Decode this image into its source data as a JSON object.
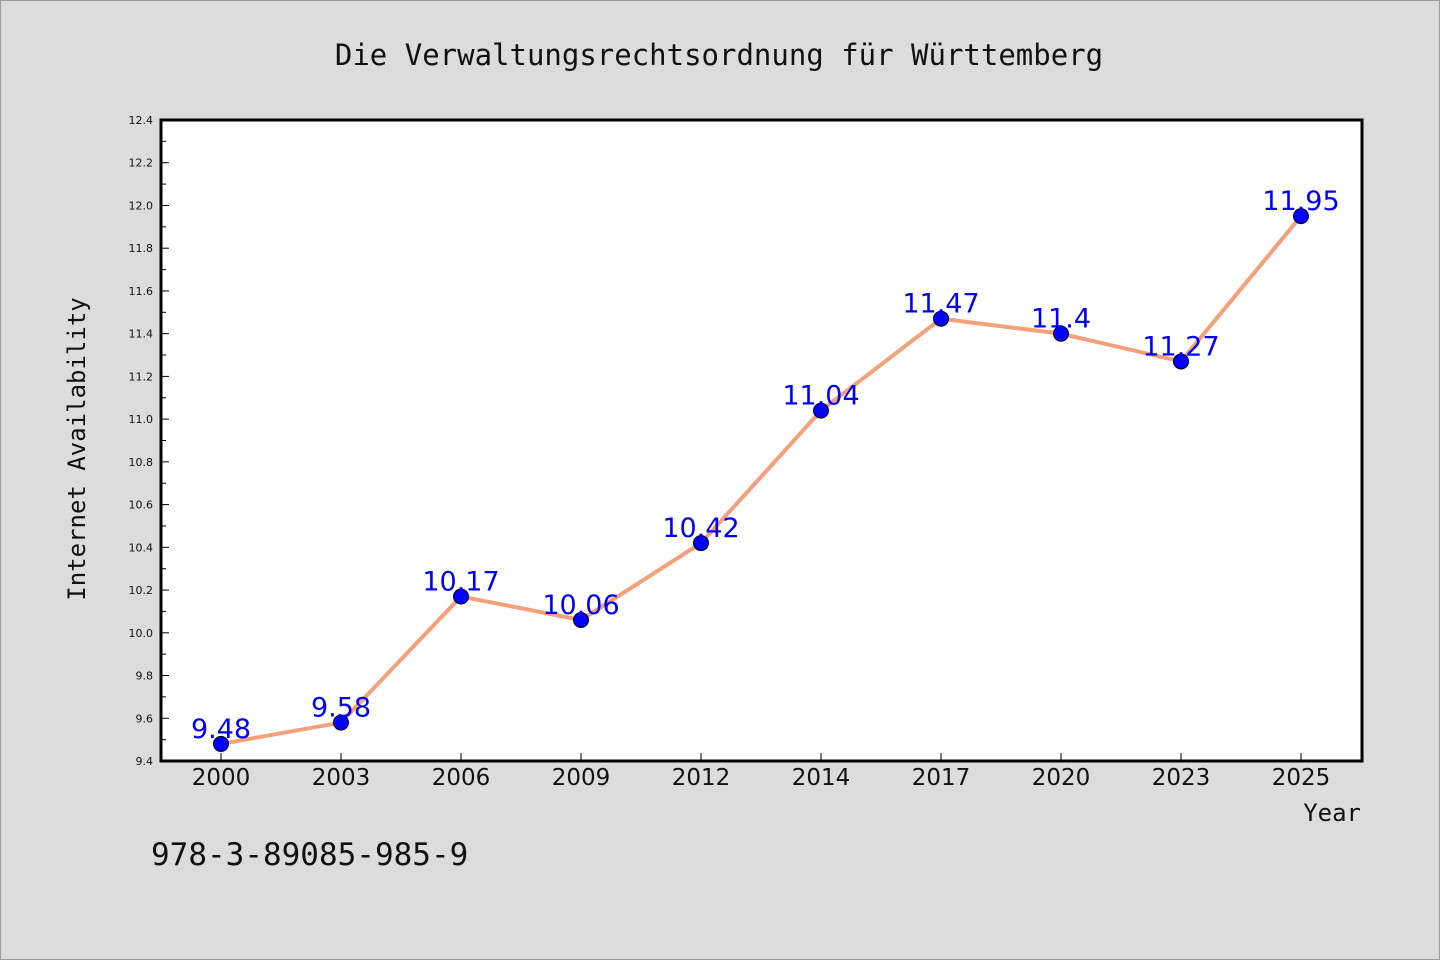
{
  "page": {
    "isbn": "978-3-89085-985-9"
  },
  "colors": {
    "background": "#dcdcdc",
    "plot_background": "#ffffff",
    "line": "#f5a07a",
    "marker": "#0000ff",
    "data_label": "#0000ff",
    "axis": "#000000"
  },
  "chart_data": {
    "type": "line",
    "title": "Die Verwaltungsrechtsordnung für Württemberg",
    "xlabel": "Year",
    "ylabel": "Internet Availability",
    "categories": [
      "2000",
      "2003",
      "2006",
      "2009",
      "2012",
      "2014",
      "2017",
      "2020",
      "2023",
      "2025"
    ],
    "series": [
      {
        "values": [
          9.48,
          9.58,
          10.17,
          10.06,
          10.42,
          11.04,
          11.47,
          11.4,
          11.27,
          11.95
        ],
        "labels": [
          "9.48",
          "9.58",
          "10.17",
          "10.06",
          "10.42",
          "11.04",
          "11.47",
          "11.4",
          "11.27",
          "11.95"
        ]
      }
    ],
    "ylim": [
      9.4,
      12.4
    ],
    "yticks": [
      "9.4",
      "9.6",
      "9.8",
      "10.0",
      "10.2",
      "10.4",
      "10.6",
      "10.8",
      "11.0",
      "11.2",
      "11.4",
      "11.6",
      "11.8",
      "12.0",
      "12.2",
      "12.4"
    ],
    "grid": false,
    "legend": "none"
  }
}
